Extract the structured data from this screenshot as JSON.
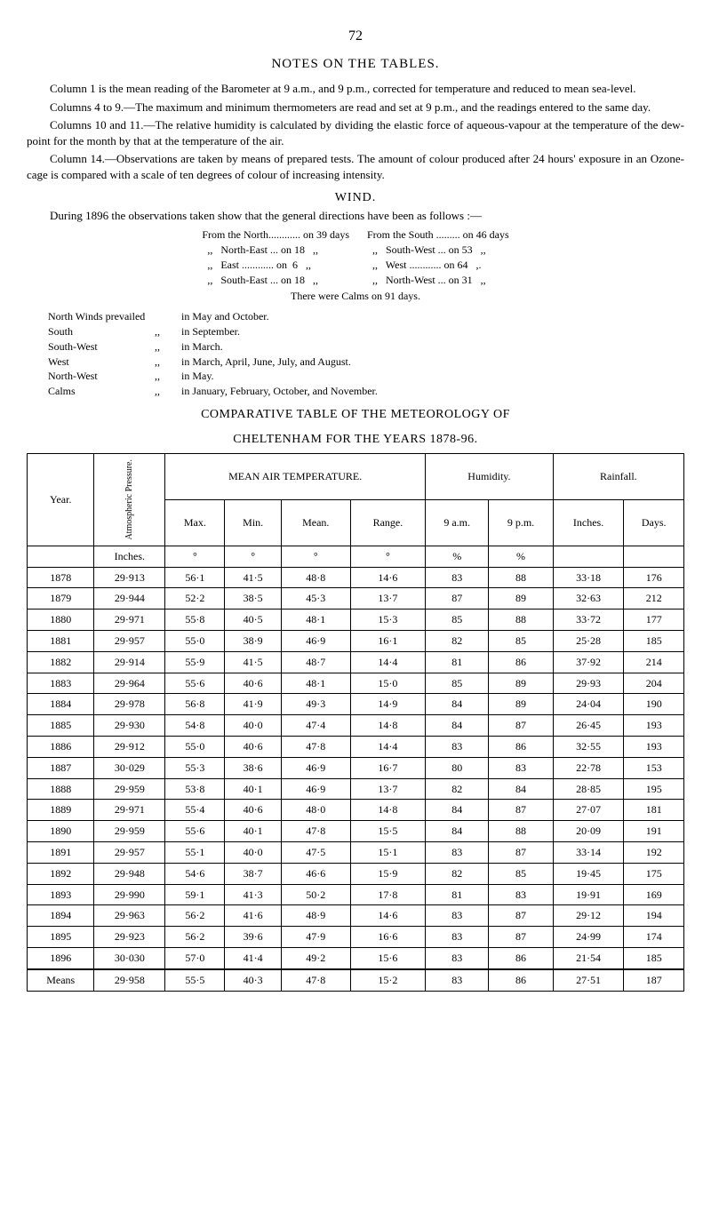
{
  "page_number": "72",
  "notes_title": "NOTES ON THE TABLES.",
  "p1": "Column 1 is the mean reading of the Barometer at 9 a.m., and 9 p.m., corrected for temperature and reduced to mean sea-level.",
  "p2": "Columns 4 to 9.—The maximum and minimum thermometers are read and set at 9 p.m., and the readings entered to the same day.",
  "p3": "Columns 10 and 11.—The relative humidity is calculated by dividing the elastic force of aqueous-vapour at the temperature of the dew-point for the month by that at the temperature of the air.",
  "p4": "Column 14.—Observations are taken by means of prepared tests. The amount of colour produced after 24 hours' exposure in an Ozone-cage is compared with a scale of ten degrees of colour of increasing intensity.",
  "wind_title": "WIND.",
  "wind_intro": "During 1896 the observations taken show that the general directions have been as follows :—",
  "wind_left": [
    "From the North............ on 39 days",
    "  ,,   North-East ... on 18   ,,",
    "  ,,   East ............ on  6   ,,",
    "  ,,   South-East ... on 18   ,,"
  ],
  "wind_right": [
    "From the South ......... on 46 days",
    "  ,,   South-West ... on 53   ,,",
    "  ,,   West ............ on 64   ,.",
    "  ,,   North-West ... on 31   ,,"
  ],
  "wind_center": "There were Calms on 91 days.",
  "prevail": [
    [
      "North Winds prevailed",
      "",
      "in May and October."
    ],
    [
      "South",
      ",,",
      "in September."
    ],
    [
      "South-West",
      ",,",
      "in March."
    ],
    [
      "West",
      ",,",
      "in March, April, June, July, and August."
    ],
    [
      "North-West",
      ",,",
      "in May."
    ],
    [
      "Calms",
      ",,",
      "in January, February, October, and November."
    ]
  ],
  "comp_title1": "COMPARATIVE TABLE OF THE METEOROLOGY OF",
  "comp_title2": "CHELTENHAM FOR THE YEARS 1878-96.",
  "table": {
    "headers": {
      "year": "Year.",
      "atmos": "Atmospheric Pressure.",
      "mean_air": "MEAN AIR TEMPERATURE.",
      "humidity": "Humidity.",
      "rainfall": "Rainfall.",
      "max": "Max.",
      "min": "Min.",
      "mean": "Mean.",
      "range": "Range.",
      "am": "9 a.m.",
      "pm": "9 p.m.",
      "inches": "Inches.",
      "days": "Days."
    },
    "unit_row": [
      "",
      "Inches.",
      "°",
      "°",
      "°",
      "°",
      "%",
      "%",
      "",
      ""
    ],
    "rows": [
      [
        "1878",
        "29·913",
        "56·1",
        "41·5",
        "48·8",
        "14·6",
        "83",
        "88",
        "33·18",
        "176"
      ],
      [
        "1879",
        "29·944",
        "52·2",
        "38·5",
        "45·3",
        "13·7",
        "87",
        "89",
        "32·63",
        "212"
      ],
      [
        "1880",
        "29·971",
        "55·8",
        "40·5",
        "48·1",
        "15·3",
        "85",
        "88",
        "33·72",
        "177"
      ],
      [
        "1881",
        "29·957",
        "55·0",
        "38·9",
        "46·9",
        "16·1",
        "82",
        "85",
        "25·28",
        "185"
      ],
      [
        "1882",
        "29·914",
        "55·9",
        "41·5",
        "48·7",
        "14·4",
        "81",
        "86",
        "37·92",
        "214"
      ],
      [
        "1883",
        "29·964",
        "55·6",
        "40·6",
        "48·1",
        "15·0",
        "85",
        "89",
        "29·93",
        "204"
      ],
      [
        "1884",
        "29·978",
        "56·8",
        "41·9",
        "49·3",
        "14·9",
        "84",
        "89",
        "24·04",
        "190"
      ],
      [
        "1885",
        "29·930",
        "54·8",
        "40·0",
        "47·4",
        "14·8",
        "84",
        "87",
        "26·45",
        "193"
      ],
      [
        "1886",
        "29·912",
        "55·0",
        "40·6",
        "47·8",
        "14·4",
        "83",
        "86",
        "32·55",
        "193"
      ],
      [
        "1887",
        "30·029",
        "55·3",
        "38·6",
        "46·9",
        "16·7",
        "80",
        "83",
        "22·78",
        "153"
      ],
      [
        "1888",
        "29·959",
        "53·8",
        "40·1",
        "46·9",
        "13·7",
        "82",
        "84",
        "28·85",
        "195"
      ],
      [
        "1889",
        "29·971",
        "55·4",
        "40·6",
        "48·0",
        "14·8",
        "84",
        "87",
        "27·07",
        "181"
      ],
      [
        "1890",
        "29·959",
        "55·6",
        "40·1",
        "47·8",
        "15·5",
        "84",
        "88",
        "20·09",
        "191"
      ],
      [
        "1891",
        "29·957",
        "55·1",
        "40·0",
        "47·5",
        "15·1",
        "83",
        "87",
        "33·14",
        "192"
      ],
      [
        "1892",
        "29·948",
        "54·6",
        "38·7",
        "46·6",
        "15·9",
        "82",
        "85",
        "19·45",
        "175"
      ],
      [
        "1893",
        "29·990",
        "59·1",
        "41·3",
        "50·2",
        "17·8",
        "81",
        "83",
        "19·91",
        "169"
      ],
      [
        "1894",
        "29·963",
        "56·2",
        "41·6",
        "48·9",
        "14·6",
        "83",
        "87",
        "29·12",
        "194"
      ],
      [
        "1895",
        "29·923",
        "56·2",
        "39·6",
        "47·9",
        "16·6",
        "83",
        "87",
        "24·99",
        "174"
      ],
      [
        "1896",
        "30·030",
        "57·0",
        "41·4",
        "49·2",
        "15·6",
        "83",
        "86",
        "21·54",
        "185"
      ]
    ],
    "means": [
      "Means",
      "29·958",
      "55·5",
      "40·3",
      "47·8",
      "15·2",
      "83",
      "86",
      "27·51",
      "187"
    ]
  }
}
